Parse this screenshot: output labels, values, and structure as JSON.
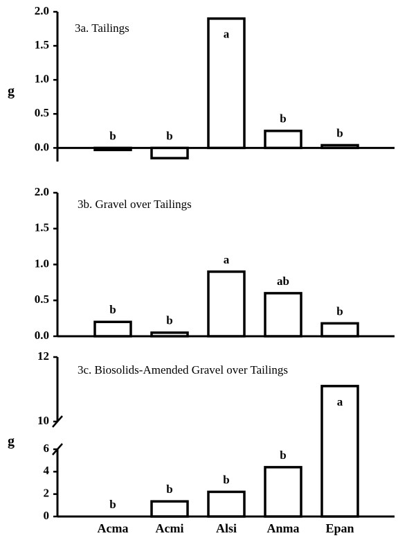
{
  "chart_data": [
    {
      "type": "bar",
      "title": "3a. Tailings",
      "ylabel": "g",
      "values": [
        -0.03,
        -0.15,
        1.9,
        0.25,
        0.04
      ],
      "annotations": [
        "b",
        "b",
        "a",
        "b",
        "b"
      ],
      "color": "#000000",
      "ylim": [
        -0.2,
        2.0
      ],
      "yticks": [
        {
          "value": 0,
          "label": "0.0"
        },
        0.5,
        {
          "value": 1,
          "label": "1.0"
        },
        1.5,
        {
          "value": 2,
          "label": "2.0"
        }
      ]
    },
    {
      "type": "bar",
      "title": "3b. Gravel over Tailings",
      "values": [
        0.2,
        0.05,
        0.9,
        0.6,
        0.18
      ],
      "annotations": [
        "b",
        "b",
        "a",
        "ab",
        "b"
      ],
      "color": "#000000",
      "ylim": [
        0,
        2.0
      ],
      "yticks": [
        {
          "value": 0,
          "label": "0.0"
        },
        0.5,
        {
          "value": 1,
          "label": "1.0"
        },
        1.5,
        {
          "value": 2,
          "label": "2.0"
        }
      ]
    },
    {
      "type": "bar",
      "title": "3c. Biosolids-Amended Gravel over Tailings",
      "ylabel": "g",
      "categories": [
        "Acma",
        "Acmi",
        "Alsi",
        "Anma",
        "Epan"
      ],
      "values": [
        0,
        1.35,
        2.2,
        4.4,
        11.1
      ],
      "annotations": [
        "b",
        "b",
        "b",
        "b",
        "a"
      ],
      "color": "#000000",
      "ylim": [
        0,
        12
      ],
      "ybreak": [
        6,
        10
      ],
      "yticks": [
        0,
        2,
        4,
        6,
        10,
        12
      ]
    }
  ]
}
